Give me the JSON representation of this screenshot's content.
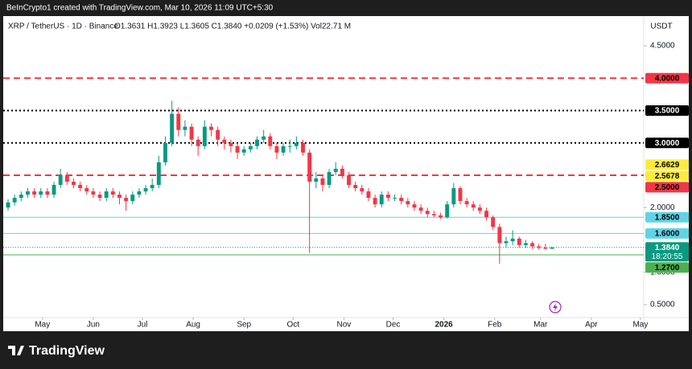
{
  "header": {
    "credit": "BeInCrypto1 created with TradingView.com, Mar 10, 2026 11:09 UTC+5:30",
    "brand": "TradingView"
  },
  "chart_data": {
    "type": "candlestick",
    "title": "XRP / TetherUS · 1D · Binance",
    "ohlc_text": "O1.3631 H1.3923 L1.3605 C1.3840 +0.0209 (+1.53%) Vol22.71 M",
    "currency": "USDT",
    "x": [
      9,
      13,
      17,
      21,
      25,
      29,
      33,
      37,
      41,
      45,
      49,
      53,
      57,
      61,
      65,
      69,
      73,
      77,
      81,
      85,
      89,
      93,
      97,
      101,
      105,
      109,
      113,
      117,
      121,
      125,
      129,
      133,
      137,
      141,
      145,
      149,
      153,
      157,
      161,
      165,
      169,
      173,
      177,
      181,
      185,
      189,
      193,
      197,
      201,
      205,
      209,
      213,
      217,
      221,
      225,
      229,
      233,
      237,
      241,
      245,
      249,
      253,
      257,
      261,
      265,
      269,
      273,
      277,
      281,
      285,
      289,
      293,
      297,
      301,
      305,
      309,
      313,
      317,
      321,
      325,
      329,
      333,
      337,
      341
    ],
    "candles": [
      [
        2.0,
        2.13,
        1.95,
        2.08
      ],
      [
        2.08,
        2.2,
        2.03,
        2.15
      ],
      [
        2.15,
        2.25,
        2.1,
        2.2
      ],
      [
        2.2,
        2.3,
        2.15,
        2.25
      ],
      [
        2.25,
        2.3,
        2.15,
        2.2
      ],
      [
        2.2,
        2.3,
        2.15,
        2.25
      ],
      [
        2.25,
        2.3,
        2.15,
        2.2
      ],
      [
        2.2,
        2.4,
        2.15,
        2.35
      ],
      [
        2.35,
        2.6,
        2.3,
        2.5
      ],
      [
        2.5,
        2.55,
        2.35,
        2.4
      ],
      [
        2.4,
        2.45,
        2.3,
        2.35
      ],
      [
        2.35,
        2.4,
        2.25,
        2.3
      ],
      [
        2.3,
        2.35,
        2.2,
        2.25
      ],
      [
        2.25,
        2.3,
        2.15,
        2.2
      ],
      [
        2.2,
        2.25,
        2.1,
        2.15
      ],
      [
        2.15,
        2.3,
        2.1,
        2.25
      ],
      [
        2.25,
        2.3,
        2.15,
        2.2
      ],
      [
        2.2,
        2.25,
        2.05,
        2.15
      ],
      [
        2.15,
        2.2,
        1.95,
        2.1
      ],
      [
        2.1,
        2.25,
        2.05,
        2.2
      ],
      [
        2.2,
        2.3,
        2.15,
        2.25
      ],
      [
        2.25,
        2.35,
        2.2,
        2.3
      ],
      [
        2.3,
        2.45,
        2.25,
        2.35
      ],
      [
        2.35,
        2.8,
        2.3,
        2.7
      ],
      [
        2.7,
        3.1,
        2.65,
        3.0
      ],
      [
        3.0,
        3.65,
        2.95,
        3.45
      ],
      [
        3.45,
        3.55,
        3.1,
        3.2
      ],
      [
        3.2,
        3.35,
        3.1,
        3.25
      ],
      [
        3.25,
        3.3,
        2.95,
        3.05
      ],
      [
        3.05,
        3.1,
        2.8,
        2.95
      ],
      [
        2.95,
        3.35,
        2.9,
        3.25
      ],
      [
        3.25,
        3.3,
        3.1,
        3.2
      ],
      [
        3.2,
        3.25,
        2.95,
        3.05
      ],
      [
        3.05,
        3.1,
        2.9,
        3.0
      ],
      [
        3.0,
        3.05,
        2.85,
        2.95
      ],
      [
        2.95,
        3.0,
        2.75,
        2.85
      ],
      [
        2.85,
        2.95,
        2.8,
        2.9
      ],
      [
        2.9,
        3.0,
        2.85,
        2.95
      ],
      [
        2.95,
        3.1,
        2.9,
        3.05
      ],
      [
        3.05,
        3.2,
        3.0,
        3.1
      ],
      [
        3.1,
        3.15,
        2.9,
        2.95
      ],
      [
        2.95,
        3.0,
        2.75,
        2.85
      ],
      [
        2.85,
        3.0,
        2.8,
        2.95
      ],
      [
        2.95,
        3.05,
        2.85,
        2.95
      ],
      [
        2.95,
        3.1,
        2.9,
        3.0
      ],
      [
        3.0,
        3.05,
        2.8,
        2.85
      ],
      [
        2.85,
        2.9,
        1.3,
        2.4
      ],
      [
        2.4,
        2.55,
        2.3,
        2.45
      ],
      [
        2.45,
        2.5,
        2.25,
        2.35
      ],
      [
        2.35,
        2.6,
        2.3,
        2.55
      ],
      [
        2.55,
        2.7,
        2.5,
        2.6
      ],
      [
        2.6,
        2.65,
        2.45,
        2.5
      ],
      [
        2.5,
        2.55,
        2.3,
        2.35
      ],
      [
        2.35,
        2.4,
        2.25,
        2.3
      ],
      [
        2.3,
        2.35,
        2.2,
        2.25
      ],
      [
        2.25,
        2.3,
        2.1,
        2.15
      ],
      [
        2.15,
        2.2,
        2.0,
        2.05
      ],
      [
        2.05,
        2.25,
        2.0,
        2.2
      ],
      [
        2.2,
        2.25,
        2.1,
        2.15
      ],
      [
        2.15,
        2.2,
        2.1,
        2.15
      ],
      [
        2.15,
        2.2,
        2.05,
        2.1
      ],
      [
        2.1,
        2.15,
        2.0,
        2.05
      ],
      [
        2.05,
        2.1,
        1.95,
        2.0
      ],
      [
        2.0,
        2.05,
        1.9,
        1.95
      ],
      [
        1.95,
        2.0,
        1.85,
        1.9
      ],
      [
        1.9,
        1.95,
        1.85,
        1.88
      ],
      [
        1.88,
        1.92,
        1.82,
        1.85
      ],
      [
        1.85,
        2.1,
        1.83,
        2.05
      ],
      [
        2.05,
        2.38,
        2.0,
        2.3
      ],
      [
        2.3,
        2.33,
        2.05,
        2.1
      ],
      [
        2.1,
        2.15,
        2.0,
        2.05
      ],
      [
        2.05,
        2.1,
        1.95,
        2.0
      ],
      [
        2.0,
        2.05,
        1.9,
        1.95
      ],
      [
        1.95,
        2.0,
        1.8,
        1.85
      ],
      [
        1.85,
        1.88,
        1.65,
        1.7
      ],
      [
        1.7,
        1.75,
        1.13,
        1.45
      ],
      [
        1.45,
        1.55,
        1.38,
        1.48
      ],
      [
        1.48,
        1.65,
        1.42,
        1.52
      ],
      [
        1.52,
        1.55,
        1.38,
        1.42
      ],
      [
        1.42,
        1.5,
        1.38,
        1.45
      ],
      [
        1.45,
        1.48,
        1.36,
        1.4
      ],
      [
        1.4,
        1.44,
        1.35,
        1.38
      ],
      [
        1.38,
        1.44,
        1.35,
        1.3631
      ],
      [
        1.3631,
        1.3923,
        1.3605,
        1.384
      ]
    ],
    "up_color": "#089981",
    "down_color": "#f23645",
    "xlim": [
      8,
      397
    ],
    "xticks": [
      {
        "value": 30,
        "label": "May"
      },
      {
        "value": 61,
        "label": "Jun"
      },
      {
        "value": 91,
        "label": "Jul"
      },
      {
        "value": 122,
        "label": "Aug"
      },
      {
        "value": 153,
        "label": "Sep"
      },
      {
        "value": 183,
        "label": "Oct"
      },
      {
        "value": 214,
        "label": "Nov"
      },
      {
        "value": 244,
        "label": "Dec"
      },
      {
        "value": 275,
        "label": "2026"
      },
      {
        "value": 306,
        "label": "Feb"
      },
      {
        "value": 334,
        "label": "Mar"
      },
      {
        "value": 365,
        "label": "Apr"
      },
      {
        "value": 395,
        "label": "May"
      }
    ],
    "ylim": [
      0.3,
      4.96
    ],
    "yticks": [
      {
        "value": 4.5,
        "label": "4.5000"
      },
      {
        "value": 2,
        "label": "2.0000"
      },
      {
        "value": 1,
        "label": "1.0000"
      },
      {
        "value": 0.5,
        "label": "0.5000"
      }
    ],
    "levels": [
      {
        "value": 4.0,
        "label": "4.0000",
        "color": "#f23645",
        "text_color": "#000000",
        "style": "dashed"
      },
      {
        "value": 3.5,
        "label": "3.5000",
        "color": "#000000",
        "text_color": "#ffffff",
        "style": "dotted"
      },
      {
        "value": 3.0,
        "label": "3.0000",
        "color": "#000000",
        "text_color": "#ffffff",
        "style": "dotted"
      },
      {
        "value": 2.6629,
        "label": "2.6629",
        "color": "#ffeb3b",
        "text_color": "#000000",
        "style": "none"
      },
      {
        "value": 2.5678,
        "label": "2.5678",
        "color": "#ffeb3b",
        "text_color": "#000000",
        "style": "none"
      },
      {
        "value": 2.5,
        "label": "2.5000",
        "color": "#f23645",
        "text_color": "#000000",
        "style": "dashed"
      },
      {
        "value": 1.85,
        "label": "1.8500",
        "color": "#5fd4e6",
        "text_color": "#000000",
        "style": "solid"
      },
      {
        "value": 1.6,
        "label": "1.6000",
        "color": "#5fd4e6",
        "text_color": "#000000",
        "style": "solid"
      },
      {
        "value": 1.384,
        "label": "1.3840",
        "color": "#089981",
        "text_color": "#ffffff",
        "style": "price",
        "countdown": "18:20:55"
      },
      {
        "value": 1.27,
        "label": "1.2700",
        "color": "#4caf50",
        "text_color": "#000000",
        "style": "solid"
      }
    ]
  }
}
